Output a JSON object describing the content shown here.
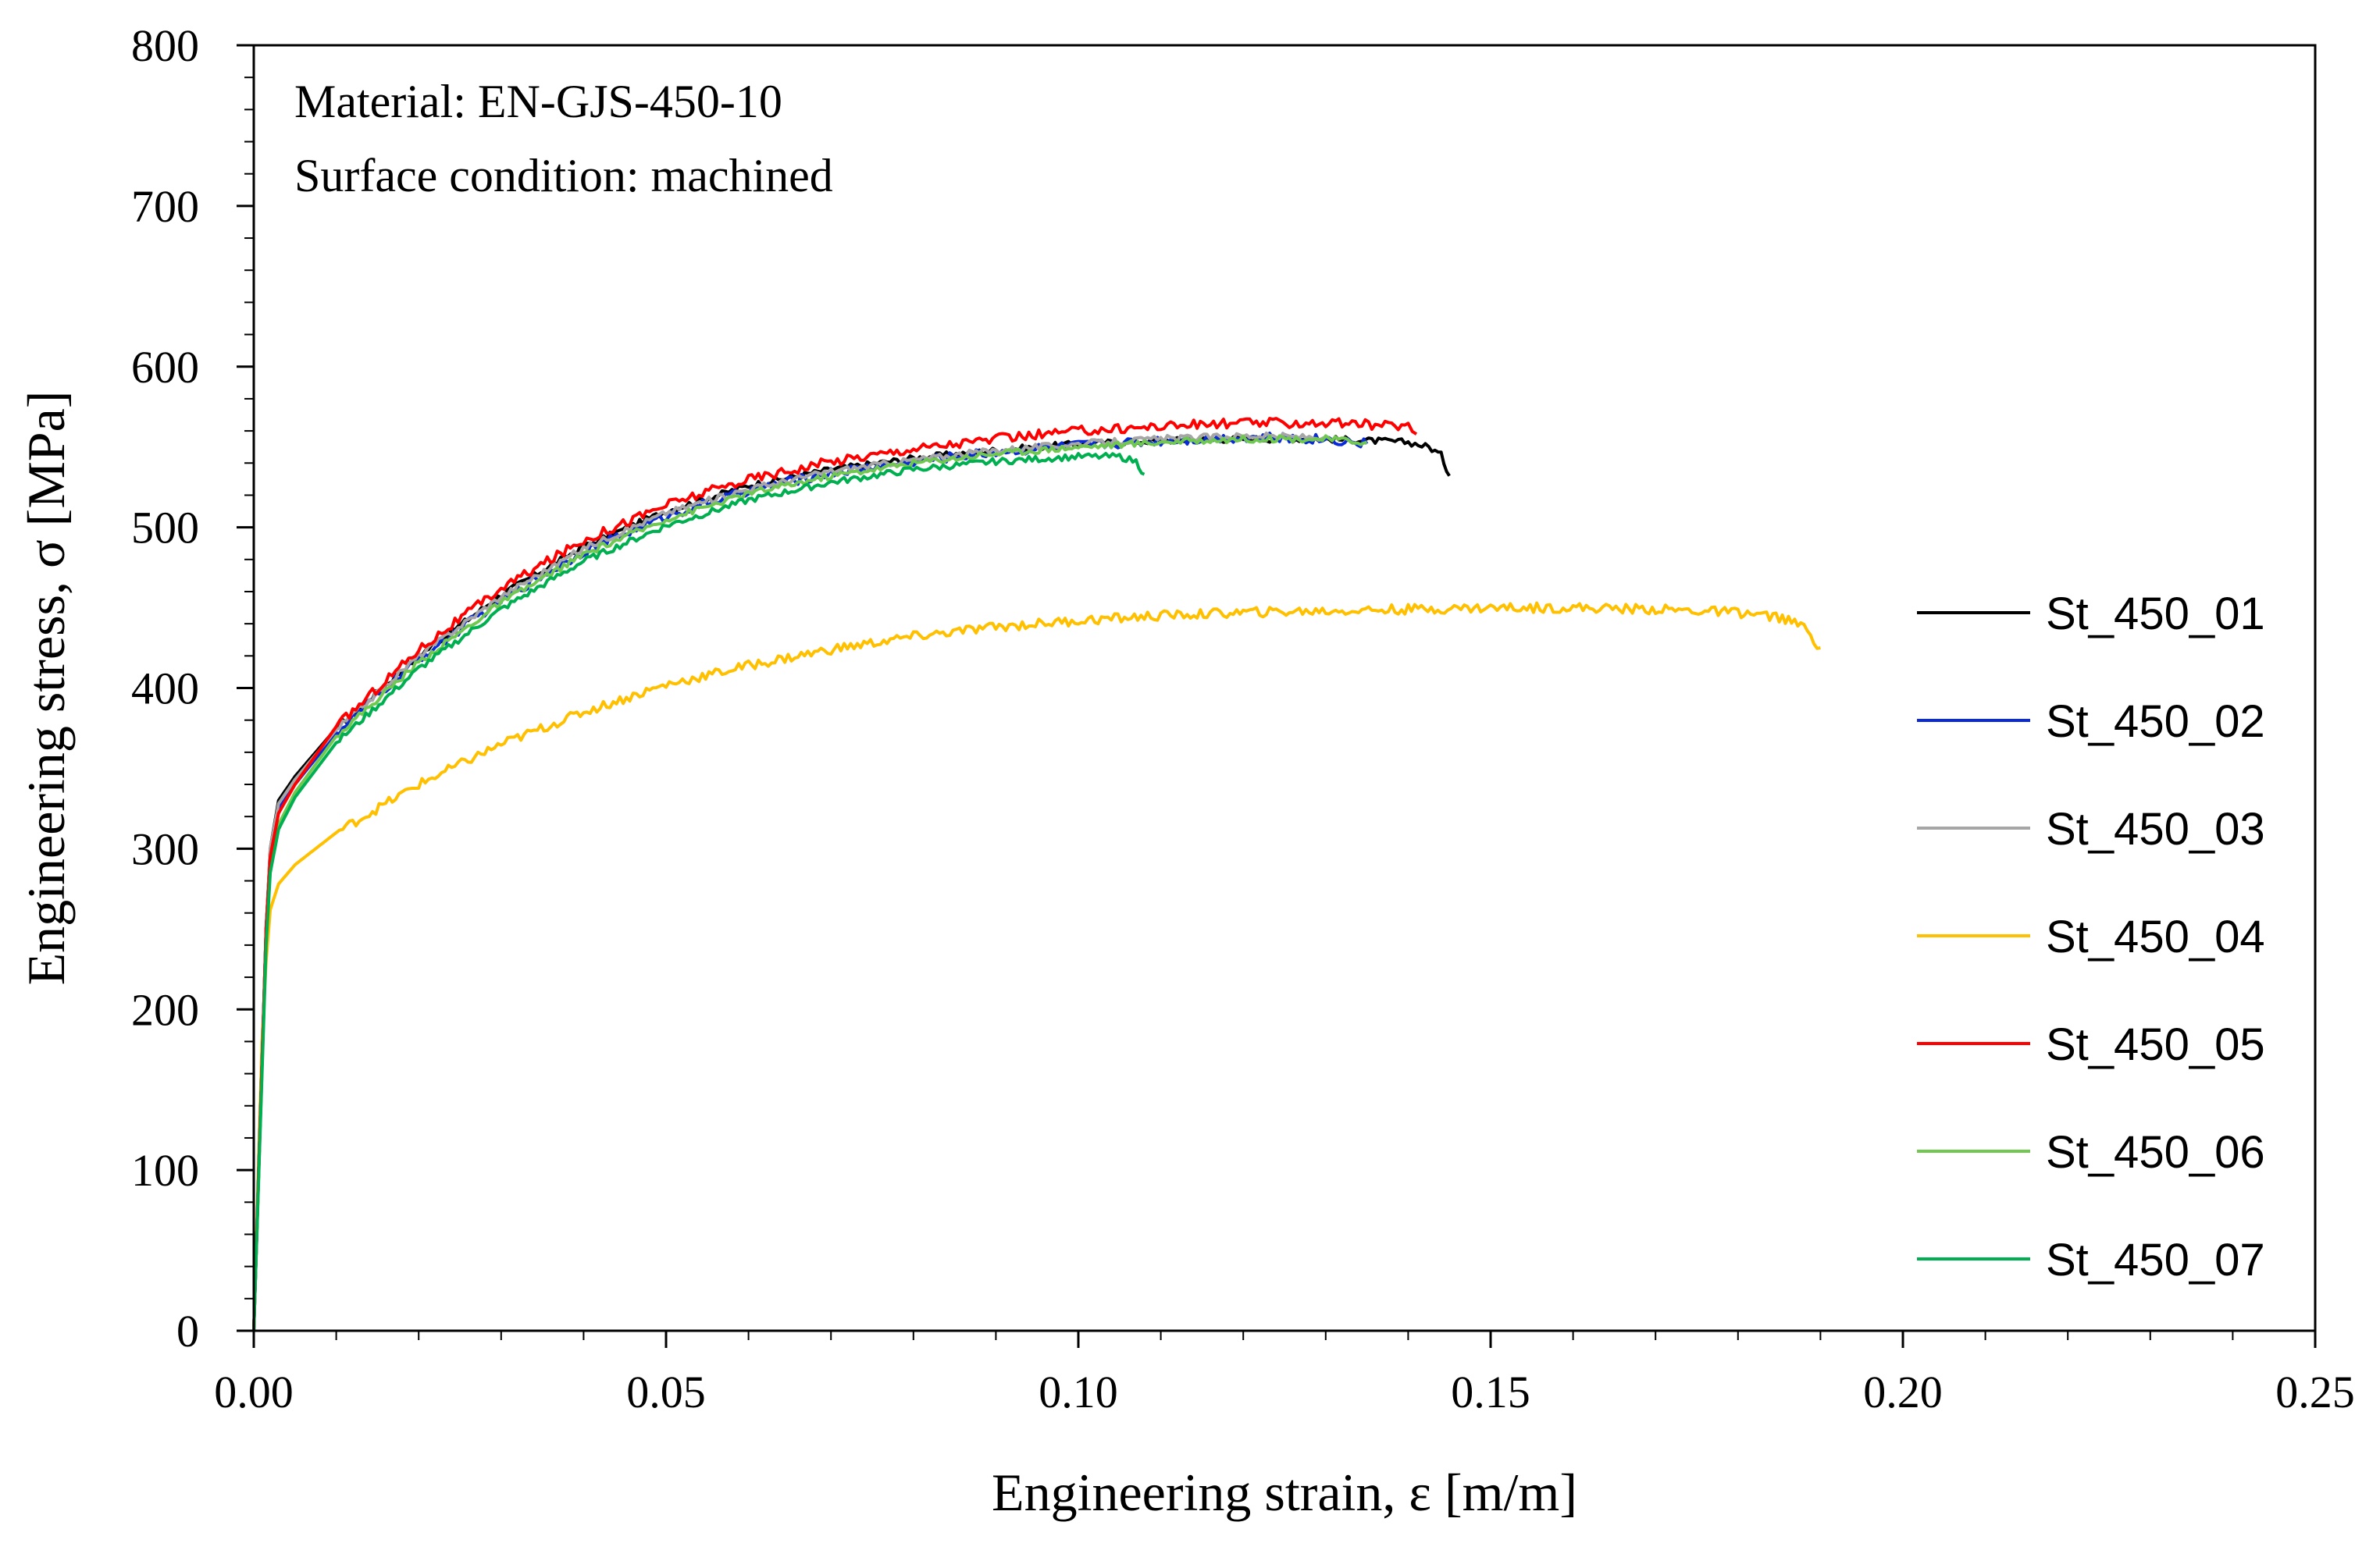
{
  "chart_data": {
    "type": "line",
    "title": "",
    "xlabel": "Engineering strain, ε [m/m]",
    "ylabel": "Engineering stress, σ [MPa]",
    "xlim": [
      0,
      0.25
    ],
    "ylim": [
      0,
      800
    ],
    "x_ticks": [
      0,
      0.05,
      0.1,
      0.15,
      0.2,
      0.25
    ],
    "x_tick_labels": [
      "0.00",
      "0.05",
      "0.10",
      "0.15",
      "0.20",
      "0.25"
    ],
    "y_ticks": [
      0,
      100,
      200,
      300,
      400,
      500,
      600,
      700,
      800
    ],
    "y_tick_labels": [
      "0",
      "100",
      "200",
      "300",
      "400",
      "500",
      "600",
      "700",
      "800"
    ],
    "grid": false,
    "legend_position": "right",
    "annotations": [
      "Material: EN-GJS-450-10",
      "Surface condition: machined"
    ],
    "series": [
      {
        "name": "St_450_01",
        "color": "#000000",
        "noise": 2,
        "x": [
          0,
          0.0015,
          0.002,
          0.003,
          0.005,
          0.01,
          0.02,
          0.03,
          0.04,
          0.05,
          0.06,
          0.07,
          0.08,
          0.09,
          0.1,
          0.11,
          0.12,
          0.13,
          0.14,
          0.1425,
          0.144,
          0.145
        ],
        "y": [
          0,
          250,
          300,
          330,
          345,
          375,
          420,
          458,
          488,
          510,
          526,
          536,
          543,
          548,
          552,
          554,
          555,
          555,
          553,
          550,
          545,
          532
        ]
      },
      {
        "name": "St_450_02",
        "color": "#0a2ad8",
        "noise": 3,
        "x": [
          0,
          0.0015,
          0.002,
          0.003,
          0.005,
          0.01,
          0.02,
          0.03,
          0.04,
          0.05,
          0.06,
          0.07,
          0.08,
          0.09,
          0.1,
          0.11,
          0.12,
          0.13,
          0.135
        ],
        "y": [
          0,
          250,
          298,
          325,
          340,
          372,
          418,
          455,
          485,
          507,
          523,
          534,
          541,
          547,
          551,
          554,
          556,
          555,
          552
        ]
      },
      {
        "name": "St_450_03",
        "color": "#a6a6a6",
        "noise": 2,
        "x": [
          0,
          0.0015,
          0.002,
          0.003,
          0.005,
          0.01,
          0.02,
          0.03,
          0.04,
          0.05,
          0.06,
          0.063,
          0.07,
          0.08,
          0.09,
          0.1,
          0.11,
          0.12,
          0.13
        ],
        "y": [
          0,
          250,
          300,
          328,
          343,
          374,
          420,
          457,
          487,
          509,
          524,
          527,
          535,
          542,
          548,
          552,
          555,
          557,
          556
        ]
      },
      {
        "name": "St_450_04",
        "color": "#ffc000",
        "noise": 3,
        "x": [
          0,
          0.001,
          0.0015,
          0.002,
          0.003,
          0.005,
          0.01,
          0.02,
          0.03,
          0.04,
          0.05,
          0.06,
          0.07,
          0.08,
          0.09,
          0.1,
          0.11,
          0.12,
          0.13,
          0.14,
          0.15,
          0.16,
          0.17,
          0.18,
          0.185,
          0.188,
          0.19
        ],
        "y": [
          0,
          180,
          230,
          262,
          278,
          290,
          310,
          340,
          365,
          385,
          402,
          414,
          424,
          432,
          438,
          442,
          445,
          447,
          448,
          449,
          450,
          450,
          449,
          447,
          444,
          438,
          425
        ]
      },
      {
        "name": "St_450_05",
        "color": "#ff0000",
        "noise": 3,
        "x": [
          0,
          0.0015,
          0.002,
          0.003,
          0.005,
          0.01,
          0.02,
          0.03,
          0.04,
          0.05,
          0.06,
          0.07,
          0.08,
          0.09,
          0.1,
          0.11,
          0.12,
          0.13,
          0.14,
          0.141
        ],
        "y": [
          0,
          250,
          295,
          322,
          340,
          376,
          424,
          462,
          492,
          514,
          530,
          541,
          549,
          555,
          560,
          563,
          565,
          565,
          563,
          558
        ]
      },
      {
        "name": "St_450_06",
        "color": "#70c850",
        "noise": 2,
        "x": [
          0,
          0.0015,
          0.002,
          0.003,
          0.005,
          0.01,
          0.02,
          0.03,
          0.04,
          0.05,
          0.06,
          0.07,
          0.08,
          0.09,
          0.1,
          0.11,
          0.12,
          0.13,
          0.135
        ],
        "y": [
          0,
          245,
          290,
          315,
          335,
          370,
          416,
          453,
          483,
          505,
          521,
          532,
          540,
          546,
          550,
          553,
          555,
          555,
          553
        ]
      },
      {
        "name": "St_450_07",
        "color": "#00b050",
        "noise": 2,
        "x": [
          0,
          0.0015,
          0.002,
          0.003,
          0.005,
          0.01,
          0.02,
          0.03,
          0.04,
          0.05,
          0.06,
          0.07,
          0.08,
          0.09,
          0.1,
          0.105,
          0.107,
          0.108
        ],
        "y": [
          0,
          240,
          285,
          312,
          332,
          366,
          412,
          449,
          479,
          501,
          517,
          528,
          536,
          541,
          544,
          544,
          541,
          533
        ]
      }
    ]
  }
}
